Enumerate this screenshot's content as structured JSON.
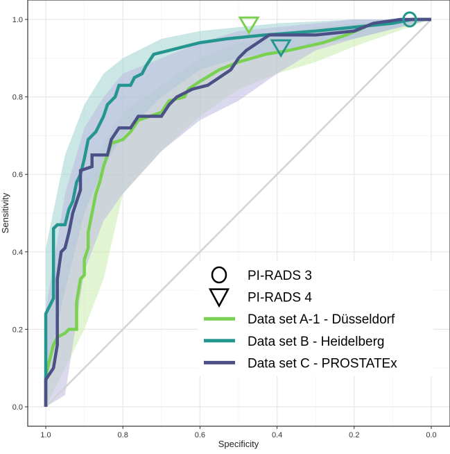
{
  "chart_data": {
    "type": "line",
    "title": "",
    "xlabel": "Specificity",
    "ylabel": "Sensitivity",
    "xlim": [
      1.0,
      0.0
    ],
    "ylim": [
      0.0,
      1.0
    ],
    "x_reversed": true,
    "grid": true,
    "legend_placement": "bottom-right inside",
    "x_ticks": [
      "1.0",
      "0.8",
      "0.6",
      "0.4",
      "0.2",
      "0.0"
    ],
    "y_ticks": [
      "0.0",
      "0.2",
      "0.4",
      "0.6",
      "0.8",
      "1.0"
    ],
    "reference_line": {
      "from": [
        1.0,
        0.0
      ],
      "to": [
        0.0,
        1.0
      ],
      "color": "#d3d3d3"
    },
    "series": [
      {
        "name": "Data set A-1 - Düsseldorf",
        "color": "#7ad151",
        "band_color": "#c9ecae",
        "points": [
          [
            1,
            0
          ],
          [
            1,
            0.08
          ],
          [
            0.99,
            0.12
          ],
          [
            0.98,
            0.16
          ],
          [
            0.97,
            0.18
          ],
          [
            0.95,
            0.19
          ],
          [
            0.94,
            0.2
          ],
          [
            0.92,
            0.2
          ],
          [
            0.92,
            0.27
          ],
          [
            0.91,
            0.33
          ],
          [
            0.9,
            0.34
          ],
          [
            0.9,
            0.38
          ],
          [
            0.89,
            0.41
          ],
          [
            0.89,
            0.45
          ],
          [
            0.88,
            0.5
          ],
          [
            0.87,
            0.55
          ],
          [
            0.86,
            0.58
          ],
          [
            0.85,
            0.62
          ],
          [
            0.84,
            0.65
          ],
          [
            0.83,
            0.68
          ],
          [
            0.8,
            0.69
          ],
          [
            0.78,
            0.71
          ],
          [
            0.76,
            0.74
          ],
          [
            0.73,
            0.75
          ],
          [
            0.7,
            0.76
          ],
          [
            0.68,
            0.79
          ],
          [
            0.64,
            0.8
          ],
          [
            0.63,
            0.82
          ],
          [
            0.6,
            0.84
          ],
          [
            0.55,
            0.87
          ],
          [
            0.5,
            0.89
          ],
          [
            0.43,
            0.91
          ],
          [
            0.37,
            0.92
          ],
          [
            0.28,
            0.94
          ],
          [
            0.22,
            0.96
          ],
          [
            0.15,
            0.99
          ],
          [
            0.05,
            1
          ],
          [
            0,
            1
          ]
        ],
        "ci_band": [
          [
            1,
            0.0,
            0.2
          ],
          [
            0.95,
            0.1,
            0.4
          ],
          [
            0.9,
            0.2,
            0.58
          ],
          [
            0.85,
            0.33,
            0.68
          ],
          [
            0.8,
            0.55,
            0.76
          ],
          [
            0.7,
            0.66,
            0.83
          ],
          [
            0.6,
            0.75,
            0.9
          ],
          [
            0.5,
            0.82,
            0.94
          ],
          [
            0.4,
            0.86,
            0.96
          ],
          [
            0.3,
            0.89,
            0.98
          ],
          [
            0.2,
            0.93,
            0.99
          ],
          [
            0,
            1,
            1
          ]
        ]
      },
      {
        "name": "Data set B - Heidelberg",
        "color": "#25968f",
        "band_color": "#9fd4d1",
        "points": [
          [
            1,
            0
          ],
          [
            1,
            0.24
          ],
          [
            0.98,
            0.28
          ],
          [
            0.98,
            0.46
          ],
          [
            0.97,
            0.47
          ],
          [
            0.95,
            0.47
          ],
          [
            0.94,
            0.51
          ],
          [
            0.93,
            0.53
          ],
          [
            0.92,
            0.58
          ],
          [
            0.91,
            0.6
          ],
          [
            0.9,
            0.64
          ],
          [
            0.89,
            0.69
          ],
          [
            0.87,
            0.71
          ],
          [
            0.86,
            0.73
          ],
          [
            0.85,
            0.75
          ],
          [
            0.84,
            0.78
          ],
          [
            0.82,
            0.8
          ],
          [
            0.81,
            0.83
          ],
          [
            0.78,
            0.83
          ],
          [
            0.77,
            0.85
          ],
          [
            0.75,
            0.86
          ],
          [
            0.74,
            0.88
          ],
          [
            0.72,
            0.91
          ],
          [
            0.68,
            0.92
          ],
          [
            0.6,
            0.94
          ],
          [
            0.53,
            0.95
          ],
          [
            0.43,
            0.96
          ],
          [
            0.3,
            0.97
          ],
          [
            0.2,
            0.98
          ],
          [
            0.1,
            0.99
          ],
          [
            0.05,
            1
          ],
          [
            0,
            1
          ]
        ],
        "ci_band": [
          [
            1,
            0.08,
            0.41
          ],
          [
            0.95,
            0.3,
            0.65
          ],
          [
            0.9,
            0.5,
            0.78
          ],
          [
            0.85,
            0.62,
            0.86
          ],
          [
            0.8,
            0.7,
            0.9
          ],
          [
            0.7,
            0.8,
            0.95
          ],
          [
            0.6,
            0.87,
            0.97
          ],
          [
            0.5,
            0.9,
            0.98
          ],
          [
            0.4,
            0.92,
            0.99
          ],
          [
            0.2,
            0.95,
            1
          ],
          [
            0,
            1,
            1
          ]
        ]
      },
      {
        "name": "Data set C - PROSTATEx",
        "color": "#4b5186",
        "band_color": "#bdbae0",
        "points": [
          [
            1,
            0
          ],
          [
            1,
            0.07
          ],
          [
            0.98,
            0.1
          ],
          [
            0.97,
            0.16
          ],
          [
            0.97,
            0.33
          ],
          [
            0.96,
            0.4
          ],
          [
            0.95,
            0.41
          ],
          [
            0.94,
            0.45
          ],
          [
            0.93,
            0.5
          ],
          [
            0.92,
            0.53
          ],
          [
            0.91,
            0.56
          ],
          [
            0.91,
            0.61
          ],
          [
            0.88,
            0.62
          ],
          [
            0.88,
            0.65
          ],
          [
            0.84,
            0.65
          ],
          [
            0.83,
            0.69
          ],
          [
            0.81,
            0.72
          ],
          [
            0.78,
            0.72
          ],
          [
            0.76,
            0.75
          ],
          [
            0.7,
            0.75
          ],
          [
            0.68,
            0.78
          ],
          [
            0.66,
            0.8
          ],
          [
            0.62,
            0.82
          ],
          [
            0.58,
            0.83
          ],
          [
            0.55,
            0.85
          ],
          [
            0.52,
            0.87
          ],
          [
            0.5,
            0.9
          ],
          [
            0.48,
            0.92
          ],
          [
            0.45,
            0.94
          ],
          [
            0.42,
            0.96
          ],
          [
            0.3,
            0.96
          ],
          [
            0.2,
            0.97
          ],
          [
            0.15,
            0.99
          ],
          [
            0.08,
            1
          ],
          [
            0,
            1
          ]
        ],
        "ci_band": [
          [
            1,
            0,
            0.25
          ],
          [
            0.95,
            0.03,
            0.55
          ],
          [
            0.9,
            0.35,
            0.72
          ],
          [
            0.85,
            0.48,
            0.8
          ],
          [
            0.8,
            0.55,
            0.86
          ],
          [
            0.7,
            0.66,
            0.9
          ],
          [
            0.6,
            0.74,
            0.94
          ],
          [
            0.5,
            0.79,
            0.97
          ],
          [
            0.4,
            0.86,
            0.98
          ],
          [
            0.3,
            0.92,
            0.99
          ],
          [
            0.2,
            0.95,
            1
          ],
          [
            0,
            1,
            1
          ]
        ]
      }
    ],
    "markers": [
      {
        "shape": "circle",
        "label": "PI-RADS 3",
        "x": 0.056,
        "y": 1.0,
        "color": "#7ad151"
      },
      {
        "shape": "circle",
        "label": "PI-RADS 3",
        "x": 0.056,
        "y": 1.0,
        "color": "#25968f"
      },
      {
        "shape": "triangle-down",
        "label": "PI-RADS 4",
        "x": 0.473,
        "y": 0.987,
        "color": "#7ad151"
      },
      {
        "shape": "triangle-down",
        "label": "PI-RADS 4",
        "x": 0.39,
        "y": 0.928,
        "color": "#25968f"
      }
    ],
    "legend": [
      {
        "symbol": "circle",
        "label": "PI-RADS 3"
      },
      {
        "symbol": "triangle-down",
        "label": "PI-RADS 4"
      },
      {
        "symbol": "line",
        "label": "Data set A-1 - Düsseldorf",
        "color": "#7ad151"
      },
      {
        "symbol": "line",
        "label": "Data set B - Heidelberg",
        "color": "#25968f"
      },
      {
        "symbol": "line",
        "label": "Data set C - PROSTATEx",
        "color": "#4b5186"
      }
    ]
  }
}
